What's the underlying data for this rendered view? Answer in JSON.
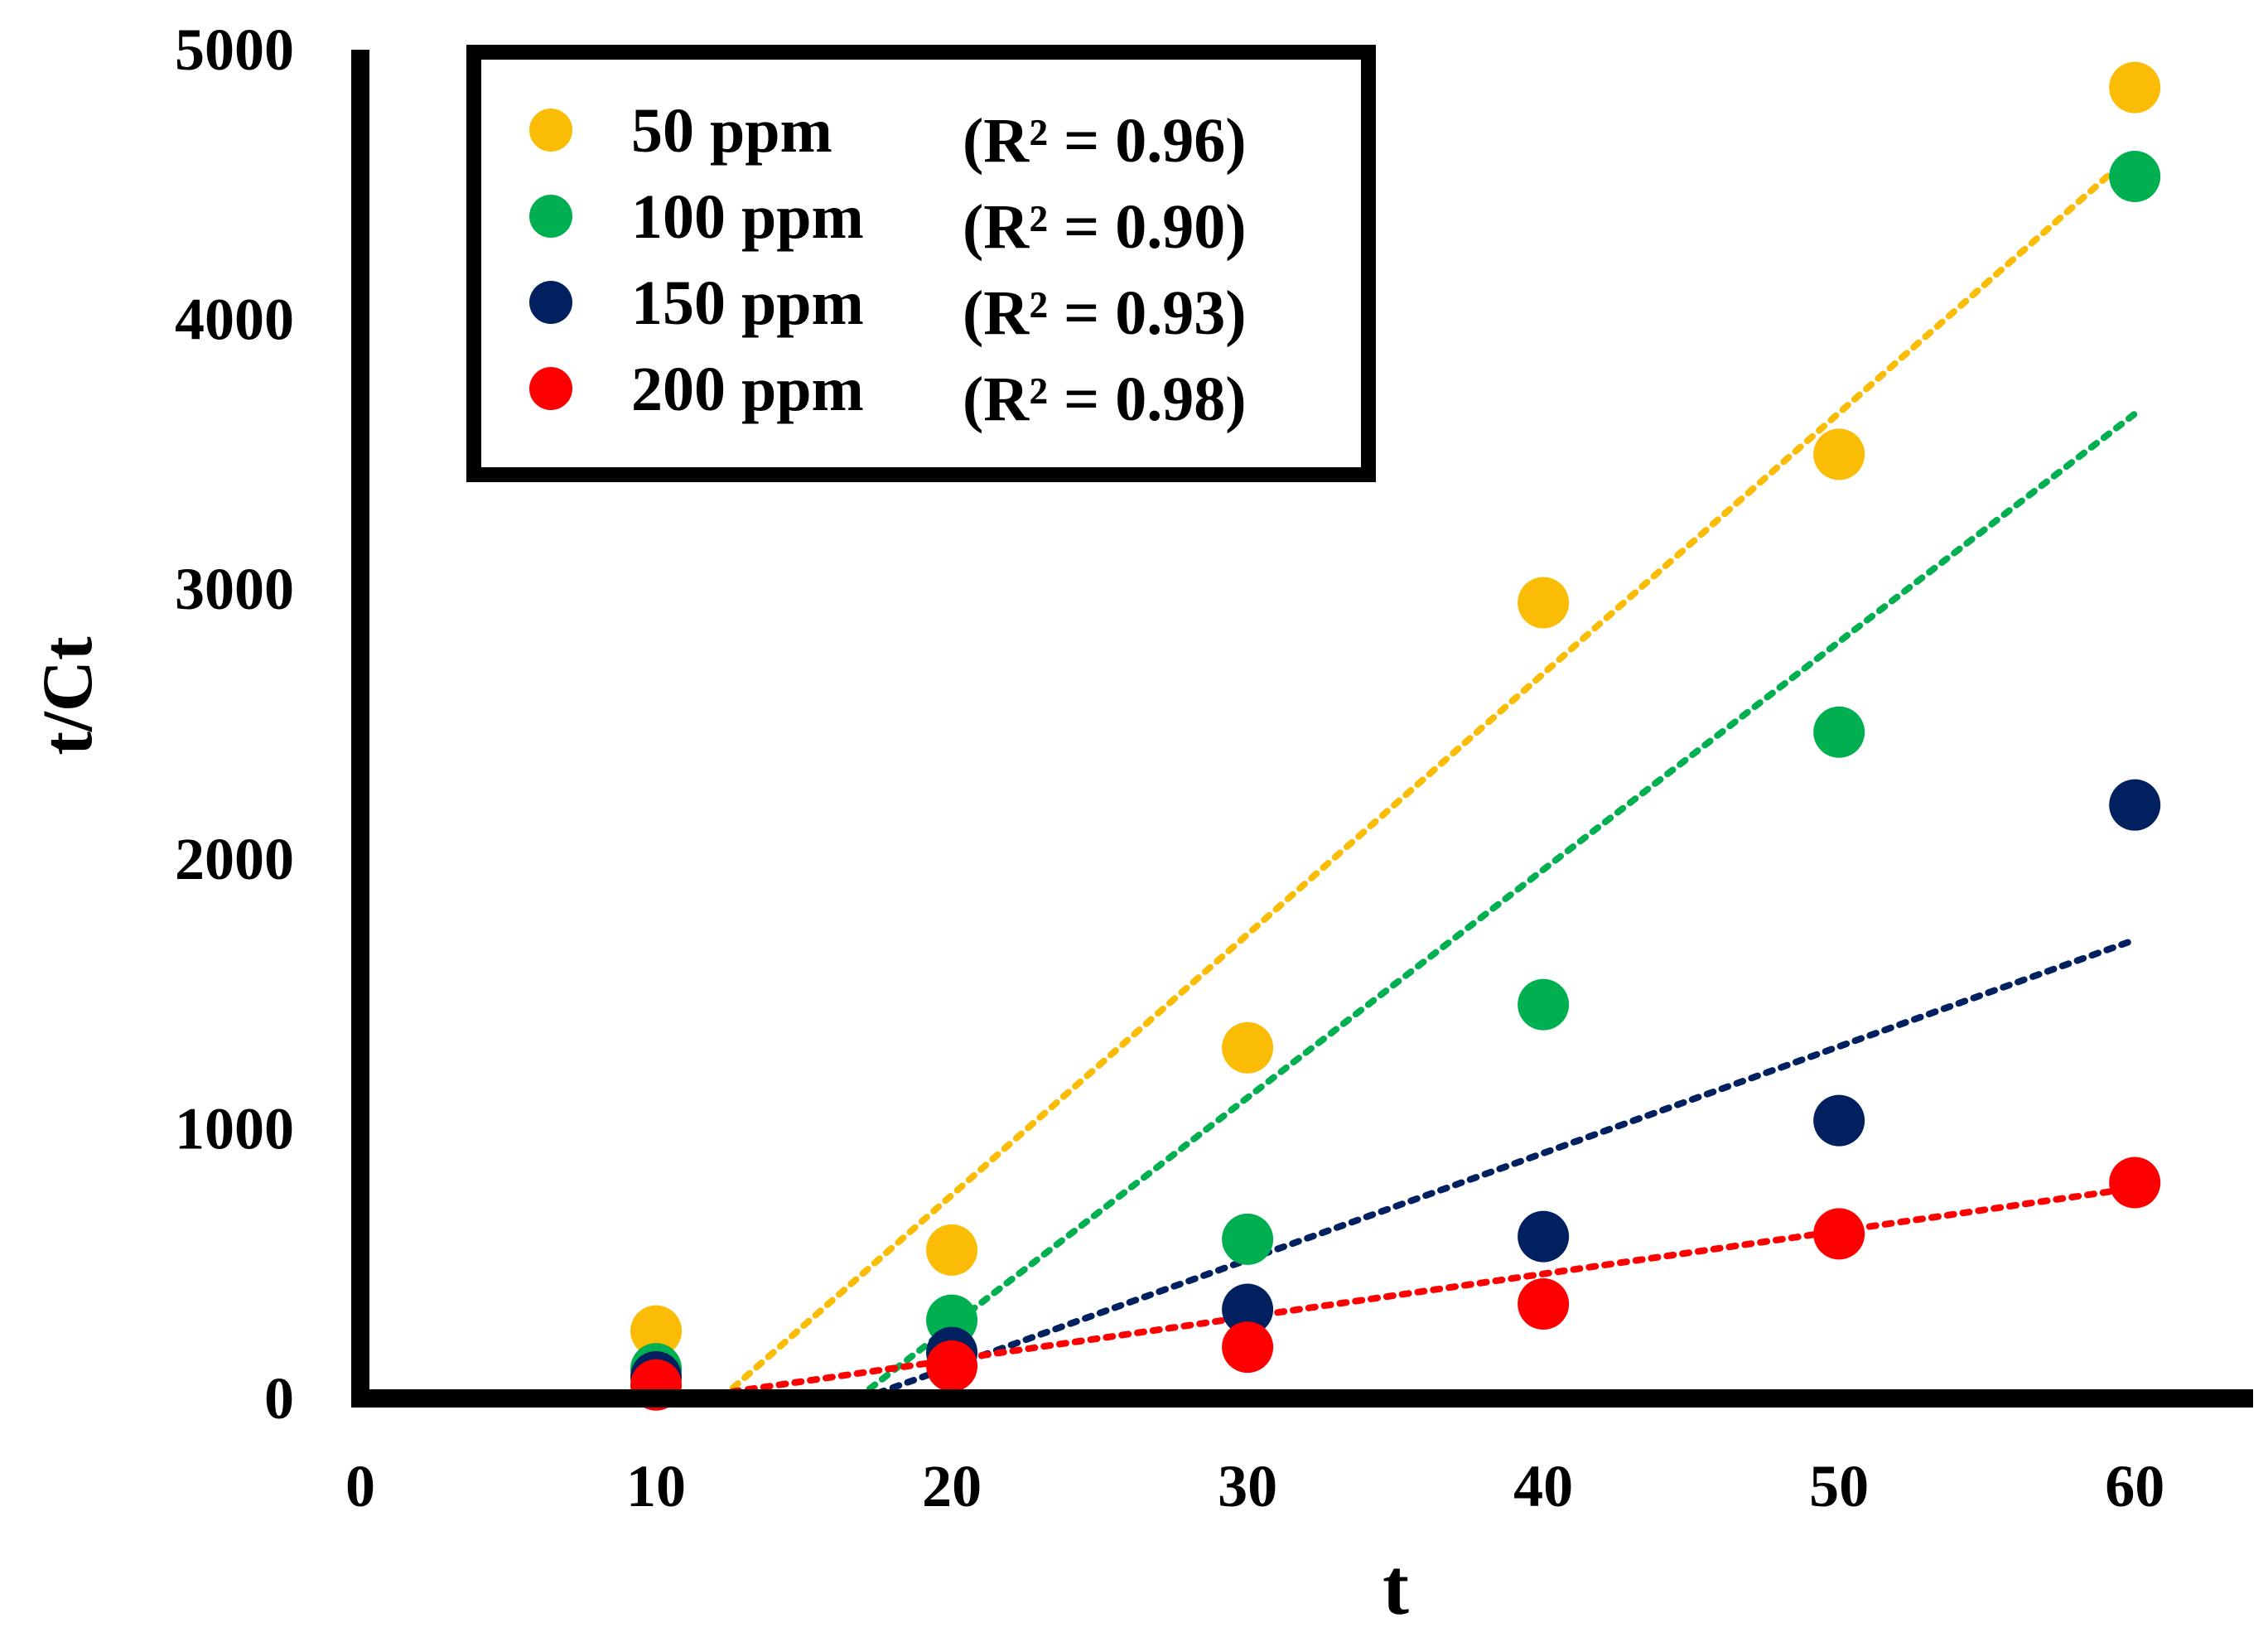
{
  "chart_data": {
    "type": "scatter",
    "title": "",
    "xlabel": "t",
    "ylabel": "t/Ct",
    "xlim": [
      0,
      64
    ],
    "ylim": [
      0,
      5000
    ],
    "xticks": [
      0,
      10,
      20,
      30,
      40,
      50,
      60
    ],
    "yticks": [
      0,
      1000,
      2000,
      3000,
      4000,
      5000
    ],
    "grid": false,
    "legend_position": "top-left",
    "x": [
      10,
      20,
      30,
      40,
      50,
      60
    ],
    "series": [
      {
        "name": "50 ppm",
        "r2": "(R² = 0.96)",
        "color": "#fbbc05",
        "values": [
          250,
          550,
          1300,
          2950,
          3500,
          4860
        ],
        "trend": [
          [
            12.2,
            0
          ],
          [
            60,
            4620
          ]
        ]
      },
      {
        "name": "100 ppm",
        "r2": "(R² = 0.90)",
        "color": "#00b050",
        "values": [
          110,
          290,
          590,
          1460,
          2470,
          4530
        ],
        "trend": [
          [
            16.8,
            0
          ],
          [
            60,
            3650
          ]
        ]
      },
      {
        "name": "150 ppm",
        "r2": "(R² = 0.93)",
        "color": "#002060",
        "values": [
          80,
          170,
          330,
          600,
          1030,
          2200
        ],
        "trend": [
          [
            17,
            0
          ],
          [
            60,
            1700
          ]
        ]
      },
      {
        "name": "200 ppm",
        "r2": "(R² = 0.98)",
        "color": "#ff0000",
        "values": [
          50,
          120,
          190,
          350,
          610,
          800
        ],
        "trend": [
          [
            11,
            0
          ],
          [
            60,
            780
          ]
        ]
      }
    ]
  }
}
